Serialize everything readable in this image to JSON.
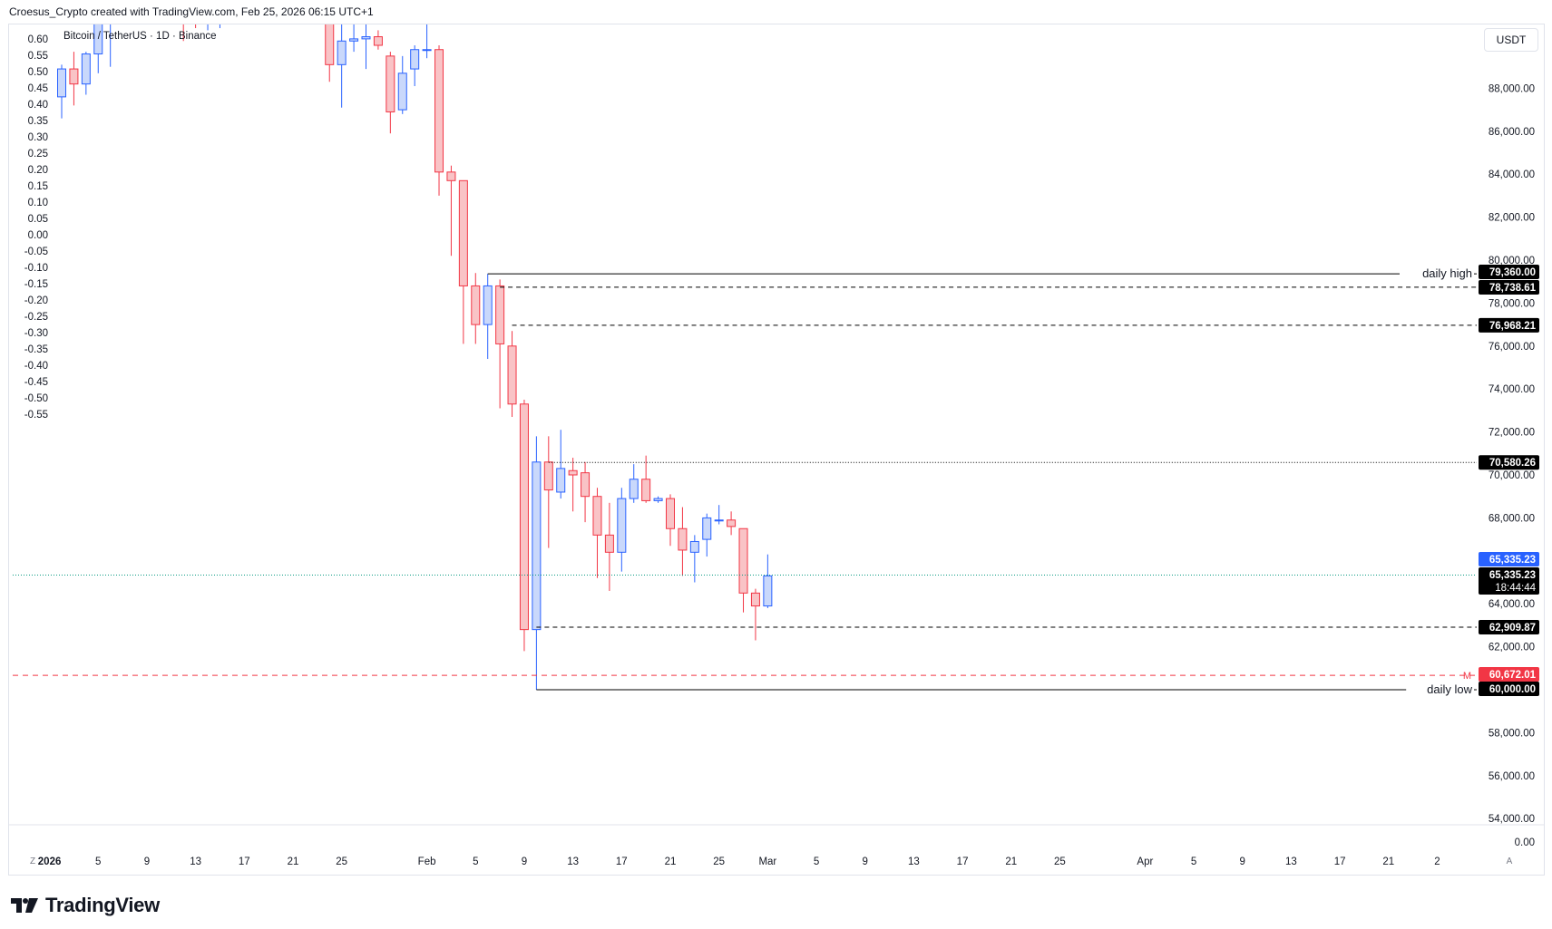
{
  "header": {
    "attribution": "Croesus_Crypto created with TradingView.com, Feb 25, 2026 06:15 UTC+1"
  },
  "legend": {
    "symbol": "Bitcoin / TetherUS · 1D · Binance"
  },
  "currency": "USDT",
  "brand": {
    "name": "TradingView"
  },
  "corner_buttons": {
    "left": "Z",
    "right": "A"
  },
  "colors": {
    "up": "#2962ff",
    "up_fill": "#c9d8fb",
    "down": "#f23645",
    "down_fill": "#f9c3c6",
    "black": "#000000",
    "last": "#2962ff",
    "red_label": "#f23645"
  },
  "chart_data": {
    "type": "candlestick",
    "title": "Bitcoin / TetherUS · 1D · Binance",
    "ylim": [
      53500,
      91000
    ],
    "y_ticks": [
      54000,
      56000,
      58000,
      60000,
      62000,
      64000,
      66000,
      68000,
      70000,
      72000,
      74000,
      76000,
      78000,
      80000,
      82000,
      84000,
      86000,
      88000
    ],
    "y_tick_labels": [
      "54,000.00",
      "56,000.00",
      "58,000.00",
      "60,000.00",
      "62,000.00",
      "64,000.00",
      "66,000.00",
      "68,000.00",
      "70,000.00",
      "72,000.00",
      "74,000.00",
      "76,000.00",
      "78,000.00",
      "80,000.00",
      "82,000.00",
      "84,000.00",
      "86,000.00",
      "88,000.00"
    ],
    "y_extra_label": "0.00",
    "left_ticks": [
      "0.60",
      "0.55",
      "0.50",
      "0.45",
      "0.40",
      "0.35",
      "0.30",
      "0.25",
      "0.20",
      "0.15",
      "0.10",
      "0.05",
      "0.00",
      "-0.05",
      "-0.10",
      "-0.15",
      "-0.20",
      "-0.25",
      "-0.30",
      "-0.35",
      "-0.40",
      "-0.45",
      "-0.50",
      "-0.55"
    ],
    "left_range": [
      0.6,
      -0.55
    ],
    "x_ticks": [
      {
        "day": -1,
        "label": "2026",
        "bold": true
      },
      {
        "day": 3,
        "label": "5"
      },
      {
        "day": 7,
        "label": "9"
      },
      {
        "day": 11,
        "label": "13"
      },
      {
        "day": 15,
        "label": "17"
      },
      {
        "day": 19,
        "label": "21"
      },
      {
        "day": 23,
        "label": "25"
      },
      {
        "day": 30,
        "label": "Feb"
      },
      {
        "day": 34,
        "label": "5"
      },
      {
        "day": 38,
        "label": "9"
      },
      {
        "day": 42,
        "label": "13"
      },
      {
        "day": 46,
        "label": "17"
      },
      {
        "day": 50,
        "label": "21"
      },
      {
        "day": 54,
        "label": "25"
      },
      {
        "day": 58,
        "label": "Mar"
      },
      {
        "day": 62,
        "label": "5"
      },
      {
        "day": 66,
        "label": "9"
      },
      {
        "day": 70,
        "label": "13"
      },
      {
        "day": 74,
        "label": "17"
      },
      {
        "day": 78,
        "label": "21"
      },
      {
        "day": 82,
        "label": "25"
      },
      {
        "day": 89,
        "label": "Apr"
      },
      {
        "day": 93,
        "label": "5"
      },
      {
        "day": 97,
        "label": "9"
      },
      {
        "day": 101,
        "label": "13"
      },
      {
        "day": 105,
        "label": "17"
      },
      {
        "day": 109,
        "label": "21"
      },
      {
        "day": 113,
        "label": "2"
      }
    ],
    "candles": [
      {
        "day": 0,
        "o": 87600,
        "h": 89100,
        "l": 86600,
        "c": 88900
      },
      {
        "day": 1,
        "o": 88900,
        "h": 89700,
        "l": 87200,
        "c": 88200
      },
      {
        "day": 2,
        "o": 88200,
        "h": 89700,
        "l": 87700,
        "c": 89600
      },
      {
        "day": 3,
        "o": 89600,
        "h": 92000,
        "l": 88700,
        "c": 91000
      },
      {
        "day": 4,
        "o": 91000,
        "h": 92500,
        "l": 89000,
        "c": 91700
      },
      {
        "day": 5,
        "o": 91700,
        "h": 94000,
        "l": 91000,
        "c": 93000
      },
      {
        "day": 10,
        "o": 92500,
        "h": 94500,
        "l": 90200,
        "c": 91200
      },
      {
        "day": 11,
        "o": 91200,
        "h": 92000,
        "l": 90800,
        "c": 91000
      },
      {
        "day": 12,
        "o": 91000,
        "h": 92500,
        "l": 90700,
        "c": 91700
      },
      {
        "day": 13,
        "o": 91700,
        "h": 92800,
        "l": 90800,
        "c": 92500
      },
      {
        "day": 22,
        "o": 95000,
        "h": 96000,
        "l": 88300,
        "c": 89100
      },
      {
        "day": 23,
        "o": 89100,
        "h": 91500,
        "l": 87100,
        "c": 90200
      },
      {
        "day": 24,
        "o": 90200,
        "h": 91100,
        "l": 89700,
        "c": 90300
      },
      {
        "day": 25,
        "o": 90300,
        "h": 92300,
        "l": 88900,
        "c": 90400
      },
      {
        "day": 26,
        "o": 90400,
        "h": 90700,
        "l": 89800,
        "c": 90000
      },
      {
        "day": 27,
        "o": 89500,
        "h": 89700,
        "l": 85900,
        "c": 86900
      },
      {
        "day": 28,
        "o": 87000,
        "h": 89500,
        "l": 86800,
        "c": 88700
      },
      {
        "day": 29,
        "o": 88900,
        "h": 90000,
        "l": 88100,
        "c": 89800
      },
      {
        "day": 30,
        "o": 89800,
        "h": 91700,
        "l": 89400,
        "c": 89800
      },
      {
        "day": 31,
        "o": 89800,
        "h": 90000,
        "l": 83000,
        "c": 84100
      },
      {
        "day": 32,
        "o": 84100,
        "h": 84400,
        "l": 80200,
        "c": 83700
      },
      {
        "day": 33,
        "o": 83700,
        "h": 83700,
        "l": 76100,
        "c": 78800
      },
      {
        "day": 34,
        "o": 78800,
        "h": 79400,
        "l": 76100,
        "c": 77000
      },
      {
        "day": 35,
        "o": 77000,
        "h": 79360,
        "l": 75400,
        "c": 78800
      },
      {
        "day": 36,
        "o": 78800,
        "h": 79100,
        "l": 73100,
        "c": 76100
      },
      {
        "day": 37,
        "o": 76000,
        "h": 76700,
        "l": 72700,
        "c": 73300
      },
      {
        "day": 38,
        "o": 73300,
        "h": 73500,
        "l": 61800,
        "c": 62800
      },
      {
        "day": 39,
        "o": 62800,
        "h": 71800,
        "l": 60000,
        "c": 70600
      },
      {
        "day": 40,
        "o": 70600,
        "h": 71800,
        "l": 66600,
        "c": 69300
      },
      {
        "day": 41,
        "o": 69200,
        "h": 72100,
        "l": 68900,
        "c": 70300
      },
      {
        "day": 42,
        "o": 70200,
        "h": 70800,
        "l": 68300,
        "c": 70000
      },
      {
        "day": 43,
        "o": 70100,
        "h": 70600,
        "l": 67800,
        "c": 69000
      },
      {
        "day": 44,
        "o": 69000,
        "h": 69400,
        "l": 65200,
        "c": 67200
      },
      {
        "day": 45,
        "o": 67200,
        "h": 68700,
        "l": 64600,
        "c": 66400
      },
      {
        "day": 46,
        "o": 66400,
        "h": 69400,
        "l": 65500,
        "c": 68900
      },
      {
        "day": 47,
        "o": 68900,
        "h": 70500,
        "l": 68700,
        "c": 69800
      },
      {
        "day": 48,
        "o": 69800,
        "h": 70900,
        "l": 68700,
        "c": 68800
      },
      {
        "day": 49,
        "o": 68800,
        "h": 69000,
        "l": 68700,
        "c": 68900
      },
      {
        "day": 50,
        "o": 68900,
        "h": 69100,
        "l": 66700,
        "c": 67500
      },
      {
        "day": 51,
        "o": 67500,
        "h": 68500,
        "l": 65300,
        "c": 66500
      },
      {
        "day": 52,
        "o": 66400,
        "h": 67200,
        "l": 65000,
        "c": 66900
      },
      {
        "day": 53,
        "o": 67000,
        "h": 68200,
        "l": 66200,
        "c": 68000
      },
      {
        "day": 54,
        "o": 67900,
        "h": 68600,
        "l": 67700,
        "c": 67900
      },
      {
        "day": 55,
        "o": 67900,
        "h": 68300,
        "l": 67200,
        "c": 67600
      },
      {
        "day": 56,
        "o": 67500,
        "h": 67500,
        "l": 63600,
        "c": 64500
      },
      {
        "day": 57,
        "o": 64500,
        "h": 64700,
        "l": 62300,
        "c": 63900
      },
      {
        "day": 58,
        "o": 63900,
        "h": 66300,
        "l": 63800,
        "c": 65300
      }
    ],
    "levels": [
      {
        "price": 79360.0,
        "label": "79,360.00",
        "style": "solid",
        "start_day": 35,
        "note": "daily high",
        "color": "#000000"
      },
      {
        "price": 78738.61,
        "label": "78,738.61",
        "style": "dashed",
        "start_day": 36,
        "color": "#000000"
      },
      {
        "price": 76968.21,
        "label": "76,968.21",
        "style": "dashed",
        "start_day": 37,
        "color": "#000000"
      },
      {
        "price": 70580.26,
        "label": "70,580.26",
        "style": "dotted",
        "start_day": 40,
        "color": "#000000"
      },
      {
        "price": 62909.87,
        "label": "62,909.87",
        "style": "dashed",
        "start_day": 39,
        "color": "#000000"
      },
      {
        "price": 60672.01,
        "label": "60,672.01",
        "style": "red-dashed",
        "start_day": -99,
        "marker": "M",
        "color": "#f23645"
      },
      {
        "price": 60000.0,
        "label": "60,000.00",
        "style": "solid",
        "start_day": 39,
        "note": "daily low",
        "color": "#000000"
      }
    ],
    "last_price": {
      "price": 65335.23,
      "label": "65,335.23",
      "countdown": "18:44:44"
    }
  }
}
